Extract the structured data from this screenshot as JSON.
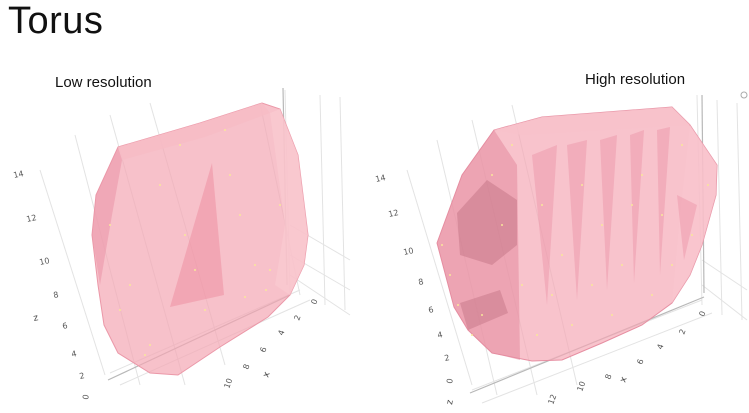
{
  "title": "Torus",
  "panels": [
    {
      "label": "Low resolution",
      "z_ticks": [
        "14",
        "12",
        "10",
        "8",
        "6",
        "4",
        "2",
        "0"
      ],
      "x_ticks": [
        "0",
        "2",
        "4",
        "6",
        "8",
        "10"
      ],
      "z_axis_title": "z",
      "x_axis_title": "x"
    },
    {
      "label": "High resolution",
      "z_ticks": [
        "14",
        "12",
        "10",
        "8",
        "6",
        "4",
        "2",
        "0"
      ],
      "x_ticks": [
        "0",
        "2",
        "4",
        "6",
        "8",
        "10",
        "12"
      ],
      "z_axis_title": "z",
      "x_axis_title": "x"
    }
  ],
  "colors": {
    "hull_fill": "#f4a6b4",
    "hull_dark": "#d98a99",
    "points": "#f8e79a"
  }
}
